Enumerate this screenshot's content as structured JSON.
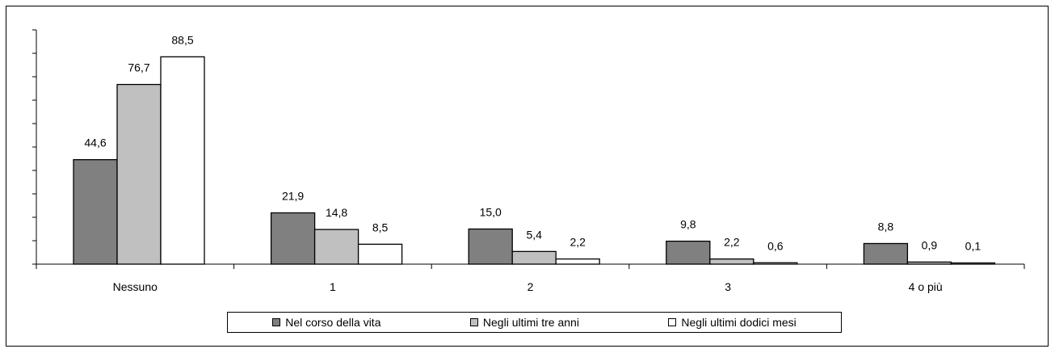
{
  "chart_data": {
    "type": "bar",
    "categories": [
      "Nessuno",
      "1",
      "2",
      "3",
      "4 o più"
    ],
    "series": [
      {
        "name": "Nel corso della vita",
        "values": [
          44.6,
          21.9,
          15.0,
          9.8,
          8.8
        ],
        "labels": [
          "44,6",
          "21,9",
          "15,0",
          "9,8",
          "8,8"
        ],
        "color": "#808080"
      },
      {
        "name": "Negli ultimi tre anni",
        "values": [
          76.7,
          14.8,
          5.4,
          2.2,
          0.9
        ],
        "labels": [
          "76,7",
          "14,8",
          "5,4",
          "2,2",
          "0,9"
        ],
        "color": "#c0c0c0"
      },
      {
        "name": "Negli ultimi dodici mesi",
        "values": [
          88.5,
          8.5,
          2.2,
          0.6,
          0.1
        ],
        "labels": [
          "88,5",
          "8,5",
          "2,2",
          "0,6",
          "0,1"
        ],
        "color": "#ffffff"
      }
    ],
    "ylim": [
      0,
      100
    ],
    "y_tick_step": 10,
    "y_tick_labels_shown": false,
    "grid": false,
    "legend_position": "bottom",
    "title": "",
    "xlabel": "",
    "ylabel": ""
  }
}
